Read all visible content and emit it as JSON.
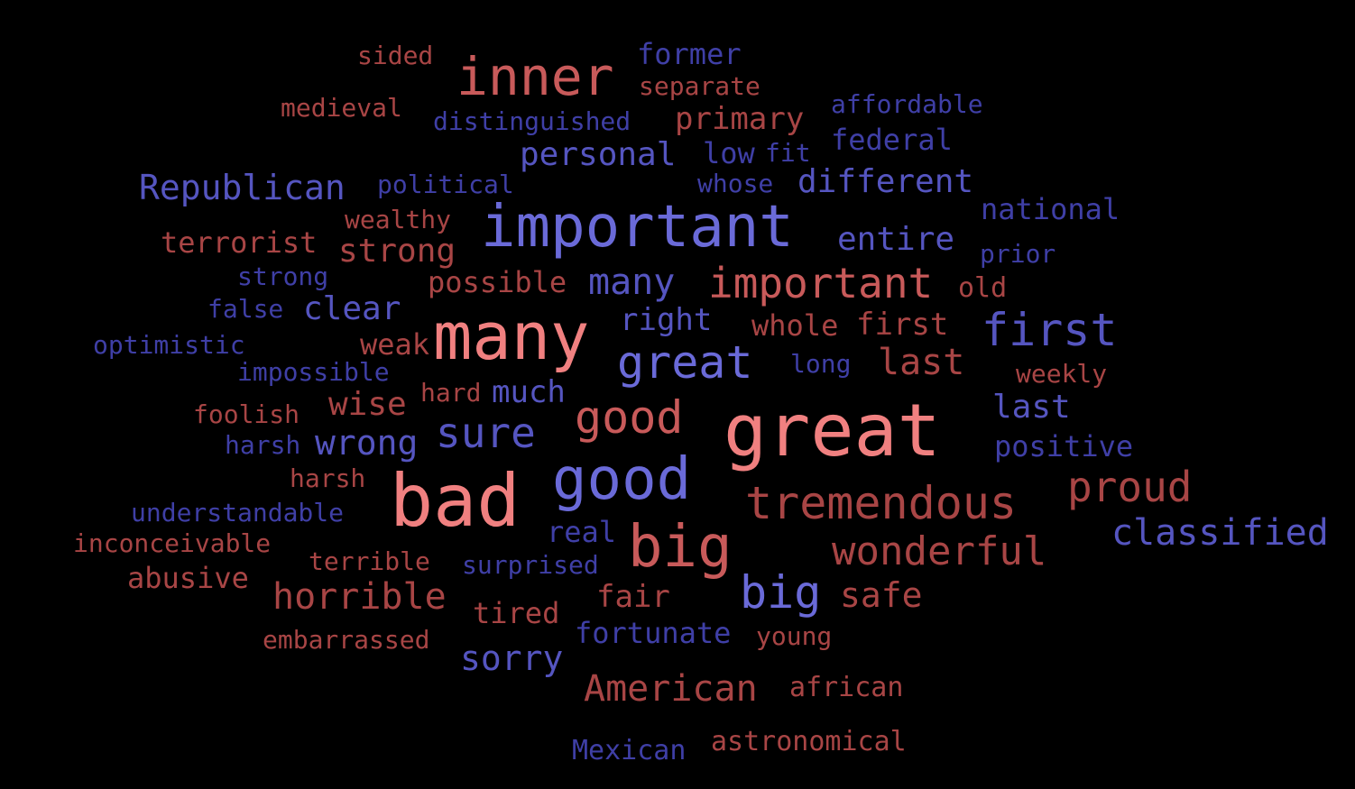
{
  "palette": {
    "background": "#000000",
    "red_light": "#f08080",
    "red_mid": "#c85a5a",
    "red_dark": "#a84545",
    "blue_light": "#6a6ad8",
    "blue_mid": "#5555c0",
    "blue_dark": "#3f3fa6"
  },
  "words": [
    {
      "text": "sided",
      "color": "#a84545"
    },
    {
      "text": "inner",
      "color": "#c85a5a"
    },
    {
      "text": "former",
      "color": "#3f3fa6"
    },
    {
      "text": "separate",
      "color": "#a84545"
    },
    {
      "text": "medieval",
      "color": "#a84545"
    },
    {
      "text": "distinguished",
      "color": "#3f3fa6"
    },
    {
      "text": "primary",
      "color": "#a84545"
    },
    {
      "text": "affordable",
      "color": "#3f3fa6"
    },
    {
      "text": "personal",
      "color": "#5555c0"
    },
    {
      "text": "low",
      "color": "#3f3fa6"
    },
    {
      "text": "fit",
      "color": "#3f3fa6"
    },
    {
      "text": "federal",
      "color": "#3f3fa6"
    },
    {
      "text": "Republican",
      "color": "#5555c0"
    },
    {
      "text": "political",
      "color": "#3f3fa6"
    },
    {
      "text": "whose",
      "color": "#3f3fa6"
    },
    {
      "text": "different",
      "color": "#5555c0"
    },
    {
      "text": "wealthy",
      "color": "#a84545"
    },
    {
      "text": "important",
      "color": "#6a6ad8"
    },
    {
      "text": "national",
      "color": "#3f3fa6"
    },
    {
      "text": "terrorist",
      "color": "#a84545"
    },
    {
      "text": "strong",
      "color": "#a84545"
    },
    {
      "text": "entire",
      "color": "#5555c0"
    },
    {
      "text": "prior",
      "color": "#3f3fa6"
    },
    {
      "text": "strong",
      "color": "#3f3fa6"
    },
    {
      "text": "possible",
      "color": "#a84545"
    },
    {
      "text": "many",
      "color": "#5555c0"
    },
    {
      "text": "important",
      "color": "#c85a5a"
    },
    {
      "text": "old",
      "color": "#a84545"
    },
    {
      "text": "false",
      "color": "#3f3fa6"
    },
    {
      "text": "clear",
      "color": "#5555c0"
    },
    {
      "text": "many",
      "color": "#f08080"
    },
    {
      "text": "right",
      "color": "#5555c0"
    },
    {
      "text": "whole",
      "color": "#a84545"
    },
    {
      "text": "first",
      "color": "#a84545"
    },
    {
      "text": "first",
      "color": "#5555c0"
    },
    {
      "text": "optimistic",
      "color": "#3f3fa6"
    },
    {
      "text": "weak",
      "color": "#a84545"
    },
    {
      "text": "great",
      "color": "#6a6ad8"
    },
    {
      "text": "long",
      "color": "#3f3fa6"
    },
    {
      "text": "last",
      "color": "#a84545"
    },
    {
      "text": "impossible",
      "color": "#3f3fa6"
    },
    {
      "text": "weekly",
      "color": "#a84545"
    },
    {
      "text": "hard",
      "color": "#a84545"
    },
    {
      "text": "much",
      "color": "#5555c0"
    },
    {
      "text": "wise",
      "color": "#a84545"
    },
    {
      "text": "foolish",
      "color": "#a84545"
    },
    {
      "text": "good",
      "color": "#c85a5a"
    },
    {
      "text": "great",
      "color": "#f08080"
    },
    {
      "text": "last",
      "color": "#5555c0"
    },
    {
      "text": "sure",
      "color": "#5555c0"
    },
    {
      "text": "harsh",
      "color": "#3f3fa6"
    },
    {
      "text": "wrong",
      "color": "#5555c0"
    },
    {
      "text": "positive",
      "color": "#3f3fa6"
    },
    {
      "text": "harsh",
      "color": "#a84545"
    },
    {
      "text": "bad",
      "color": "#f08080"
    },
    {
      "text": "good",
      "color": "#6a6ad8"
    },
    {
      "text": "tremendous",
      "color": "#a84545"
    },
    {
      "text": "proud",
      "color": "#a84545"
    },
    {
      "text": "understandable",
      "color": "#3f3fa6"
    },
    {
      "text": "real",
      "color": "#3f3fa6"
    },
    {
      "text": "classified",
      "color": "#5555c0"
    },
    {
      "text": "big",
      "color": "#c85a5a"
    },
    {
      "text": "inconceivable",
      "color": "#a84545"
    },
    {
      "text": "wonderful",
      "color": "#a84545"
    },
    {
      "text": "terrible",
      "color": "#a84545"
    },
    {
      "text": "surprised",
      "color": "#3f3fa6"
    },
    {
      "text": "abusive",
      "color": "#a84545"
    },
    {
      "text": "horrible",
      "color": "#a84545"
    },
    {
      "text": "fair",
      "color": "#a84545"
    },
    {
      "text": "big",
      "color": "#6a6ad8"
    },
    {
      "text": "safe",
      "color": "#a84545"
    },
    {
      "text": "tired",
      "color": "#a84545"
    },
    {
      "text": "fortunate",
      "color": "#3f3fa6"
    },
    {
      "text": "young",
      "color": "#a84545"
    },
    {
      "text": "embarrassed",
      "color": "#a84545"
    },
    {
      "text": "sorry",
      "color": "#5555c0"
    },
    {
      "text": "American",
      "color": "#a84545"
    },
    {
      "text": "african",
      "color": "#a84545"
    },
    {
      "text": "astronomical",
      "color": "#a84545"
    },
    {
      "text": "Mexican",
      "color": "#3f3fa6"
    }
  ]
}
